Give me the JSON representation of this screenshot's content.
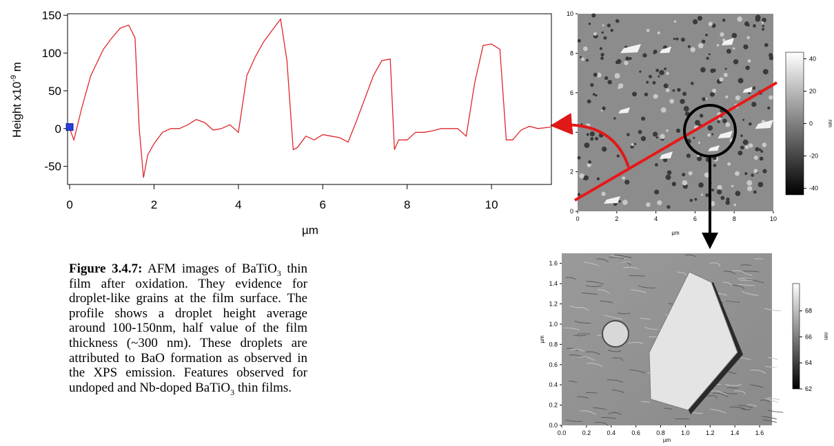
{
  "profile": {
    "type": "line",
    "y_label": {
      "text": "Height x10",
      "exponent": "-9",
      "unit": "m"
    },
    "x_label": "µm",
    "xlim": [
      -0.05,
      11.42
    ],
    "ylim": [
      -74,
      152
    ],
    "xticks": [
      0,
      2,
      4,
      6,
      8,
      10
    ],
    "yticks": [
      150,
      100,
      50,
      0,
      -50
    ],
    "series": [
      {
        "color": "#e0242a",
        "x": [
          0,
          0.1,
          0.3,
          0.5,
          0.8,
          1.0,
          1.2,
          1.4,
          1.55,
          1.65,
          1.75,
          1.85,
          2.0,
          2.2,
          2.4,
          2.6,
          2.8,
          3.0,
          3.2,
          3.4,
          3.6,
          3.8,
          4.0,
          4.2,
          4.4,
          4.6,
          4.8,
          5.0,
          5.15,
          5.3,
          5.4,
          5.6,
          5.8,
          6.0,
          6.2,
          6.4,
          6.6,
          6.8,
          7.0,
          7.2,
          7.4,
          7.6,
          7.7,
          7.8,
          8.0,
          8.2,
          8.4,
          8.6,
          8.8,
          9.0,
          9.2,
          9.4,
          9.6,
          9.8,
          10.0,
          10.2,
          10.35,
          10.5,
          10.7,
          10.9,
          11.1,
          11.4
        ],
        "values": [
          0,
          -15,
          30,
          70,
          105,
          120,
          133,
          137,
          120,
          0,
          -65,
          -35,
          -20,
          -5,
          0,
          0,
          5,
          12,
          8,
          -2,
          0,
          5,
          -5,
          70,
          95,
          115,
          130,
          145,
          90,
          -28,
          -25,
          -10,
          -15,
          -8,
          -10,
          -12,
          -18,
          10,
          40,
          70,
          90,
          92,
          -28,
          -15,
          -15,
          -5,
          -5,
          -3,
          0,
          0,
          0,
          -10,
          60,
          110,
          112,
          105,
          -15,
          -15,
          -2,
          3,
          0,
          2
        ]
      }
    ],
    "marker": {
      "x": 0,
      "y": 2,
      "color": "#2a3fd8"
    }
  },
  "afm_top": {
    "xlim": [
      0,
      10
    ],
    "ylim": [
      0,
      10
    ],
    "xticks": [
      0,
      2,
      4,
      6,
      8,
      10
    ],
    "yticks": [
      0,
      2,
      4,
      6,
      8,
      10
    ],
    "x_label": "µm",
    "colorbar": {
      "lim": [
        -44,
        44
      ],
      "ticks": [
        40,
        20,
        0,
        -20,
        -40
      ],
      "label": "nm"
    }
  },
  "afm_zoom": {
    "xlim": [
      0,
      1.7
    ],
    "ylim": [
      0,
      1.7
    ],
    "xticks": [
      {
        "value": 0,
        "label": "0.0"
      },
      {
        "value": 0.2,
        "label": "0.2"
      },
      {
        "value": 0.4,
        "label": "0.4"
      },
      {
        "value": 0.6,
        "label": "0.6"
      },
      {
        "value": 0.8,
        "label": "0.8"
      },
      {
        "value": 1,
        "label": "1.0"
      },
      {
        "value": 1.2,
        "label": "1.2"
      },
      {
        "value": 1.4,
        "label": "1.4"
      },
      {
        "value": 1.6,
        "label": "1.6"
      }
    ],
    "yticks": [
      {
        "value": 0,
        "label": "0.0"
      },
      {
        "value": 0.2,
        "label": "0.2"
      },
      {
        "value": 0.4,
        "label": "0.4"
      },
      {
        "value": 0.6,
        "label": "0.6"
      },
      {
        "value": 0.8,
        "label": "0.8"
      },
      {
        "value": 1,
        "label": "1.0"
      },
      {
        "value": 1.2,
        "label": "1.2"
      },
      {
        "value": 1.4,
        "label": "1.4"
      },
      {
        "value": 1.6,
        "label": "1.6"
      }
    ],
    "x_label": "µm",
    "y_label": "µm",
    "colorbar": {
      "lim": [
        62,
        70.1
      ],
      "ticks": [
        68,
        66,
        64,
        62
      ],
      "label": "nm"
    }
  },
  "caption": {
    "label": "Figure 3.4.7:",
    "segments": [
      " AFM images of BaTiO",
      "3",
      " thin film after oxidation. They evidence for droplet-like grains at the film surface.  The profile shows a droplet height average around 100-150nm, half value of the film thickness (~300 nm).  These droplets are attributed to BaO formation as observed in the XPS emission. Features observed for undoped and Nb-doped BaTiO",
      "3",
      " thin films."
    ]
  }
}
